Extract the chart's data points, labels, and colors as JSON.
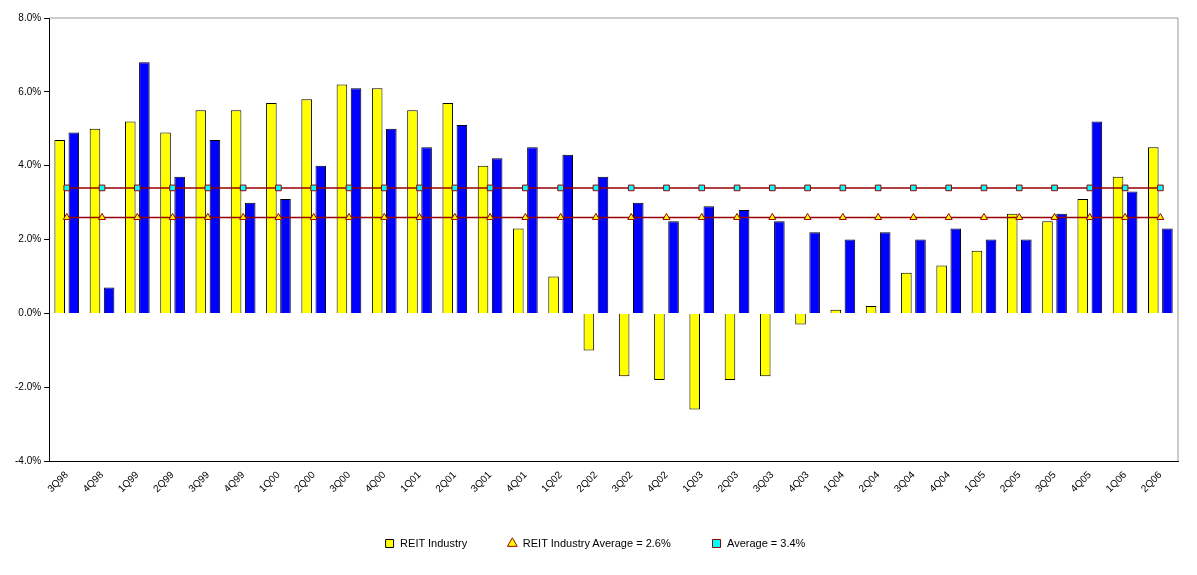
{
  "chart_data": {
    "type": "bar",
    "categories": [
      "3Q98",
      "4Q98",
      "1Q99",
      "2Q99",
      "3Q99",
      "4Q99",
      "1Q00",
      "2Q00",
      "3Q00",
      "4Q00",
      "1Q01",
      "2Q01",
      "3Q01",
      "4Q01",
      "1Q02",
      "2Q02",
      "3Q02",
      "4Q02",
      "1Q03",
      "2Q03",
      "3Q03",
      "4Q03",
      "1Q04",
      "2Q04",
      "3Q04",
      "4Q04",
      "1Q05",
      "2Q05",
      "3Q05",
      "4Q05",
      "1Q06",
      "2Q06"
    ],
    "series": [
      {
        "name": "REIT Industry",
        "color": "#ffff00",
        "values": [
          4.7,
          5.0,
          5.2,
          4.9,
          5.5,
          5.5,
          5.7,
          5.8,
          6.2,
          6.1,
          5.5,
          5.7,
          4.0,
          2.3,
          1.0,
          -1.0,
          -1.7,
          -1.8,
          -2.6,
          -1.8,
          -1.7,
          -0.3,
          0.1,
          0.2,
          1.1,
          1.3,
          1.7,
          2.7,
          2.5,
          3.1,
          3.7,
          4.5
        ]
      },
      {
        "color": "#0000ff",
        "values": [
          4.9,
          0.7,
          6.8,
          3.7,
          4.7,
          3.0,
          3.1,
          4.0,
          6.1,
          5.0,
          4.5,
          5.1,
          4.2,
          4.5,
          4.3,
          3.7,
          3.0,
          2.5,
          2.9,
          2.8,
          2.5,
          2.2,
          2.0,
          2.2,
          2.0,
          2.3,
          2.0,
          2.0,
          2.7,
          5.2,
          3.3,
          2.3
        ]
      },
      {
        "name": "REIT Industry Average = 2.6%",
        "type": "line",
        "marker": "triangle",
        "color": "#990000",
        "values": [
          2.6,
          2.6,
          2.6,
          2.6,
          2.6,
          2.6,
          2.6,
          2.6,
          2.6,
          2.6,
          2.6,
          2.6,
          2.6,
          2.6,
          2.6,
          2.6,
          2.6,
          2.6,
          2.6,
          2.6,
          2.6,
          2.6,
          2.6,
          2.6,
          2.6,
          2.6,
          2.6,
          2.6,
          2.6,
          2.6,
          2.6,
          2.6
        ]
      },
      {
        "name": "Average = 3.4%",
        "type": "line",
        "marker": "square",
        "color": "#990000",
        "values": [
          3.4,
          3.4,
          3.4,
          3.4,
          3.4,
          3.4,
          3.4,
          3.4,
          3.4,
          3.4,
          3.4,
          3.4,
          3.4,
          3.4,
          3.4,
          3.4,
          3.4,
          3.4,
          3.4,
          3.4,
          3.4,
          3.4,
          3.4,
          3.4,
          3.4,
          3.4,
          3.4,
          3.4,
          3.4,
          3.4,
          3.4,
          3.4
        ]
      }
    ],
    "ylim": [
      -4,
      8
    ],
    "yticks": [
      {
        "value": -4,
        "label": "-4.0%"
      },
      {
        "value": -2,
        "label": "-2.0%"
      },
      {
        "value": 0,
        "label": "0.0%"
      },
      {
        "value": 2,
        "label": "2.0%"
      },
      {
        "value": 4,
        "label": "4.0%"
      },
      {
        "value": 6,
        "label": "6.0%"
      },
      {
        "value": 8,
        "label": "8.0%"
      }
    ],
    "grid": false,
    "legend": "bottom"
  }
}
